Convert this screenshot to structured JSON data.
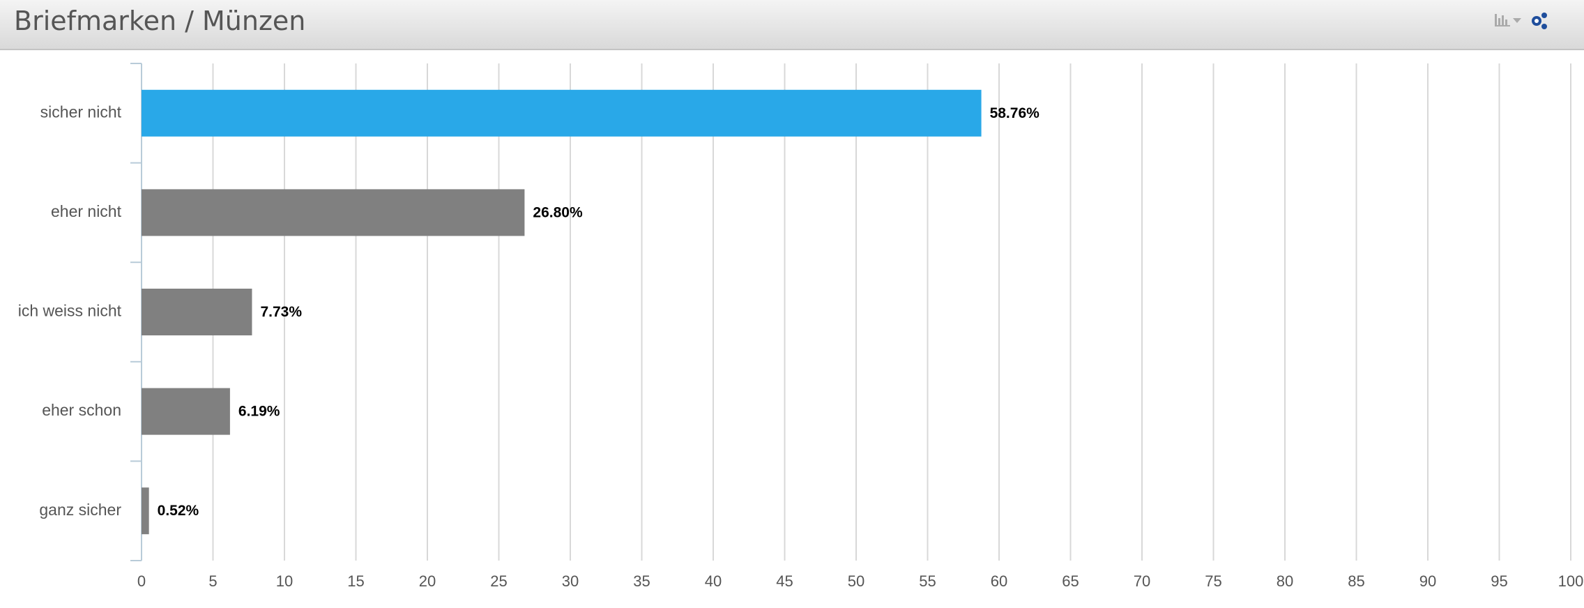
{
  "chart_data": {
    "type": "bar",
    "orientation": "horizontal",
    "title": "Briefmarken / Münzen",
    "categories": [
      "sicher nicht",
      "eher nicht",
      "ich weiss nicht",
      "eher schon",
      "ganz sicher"
    ],
    "values": [
      58.76,
      26.8,
      7.73,
      6.19,
      0.52
    ],
    "value_labels": [
      "58.76%",
      "26.80%",
      "7.73%",
      "6.19%",
      "0.52%"
    ],
    "colors": [
      "#29a8e8",
      "#808080",
      "#808080",
      "#808080",
      "#808080"
    ],
    "xlim": [
      0,
      100
    ],
    "xticks": [
      0,
      5,
      10,
      15,
      20,
      25,
      30,
      35,
      40,
      45,
      50,
      55,
      60,
      65,
      70,
      75,
      80,
      85,
      90,
      95,
      100
    ],
    "grid": true
  }
}
